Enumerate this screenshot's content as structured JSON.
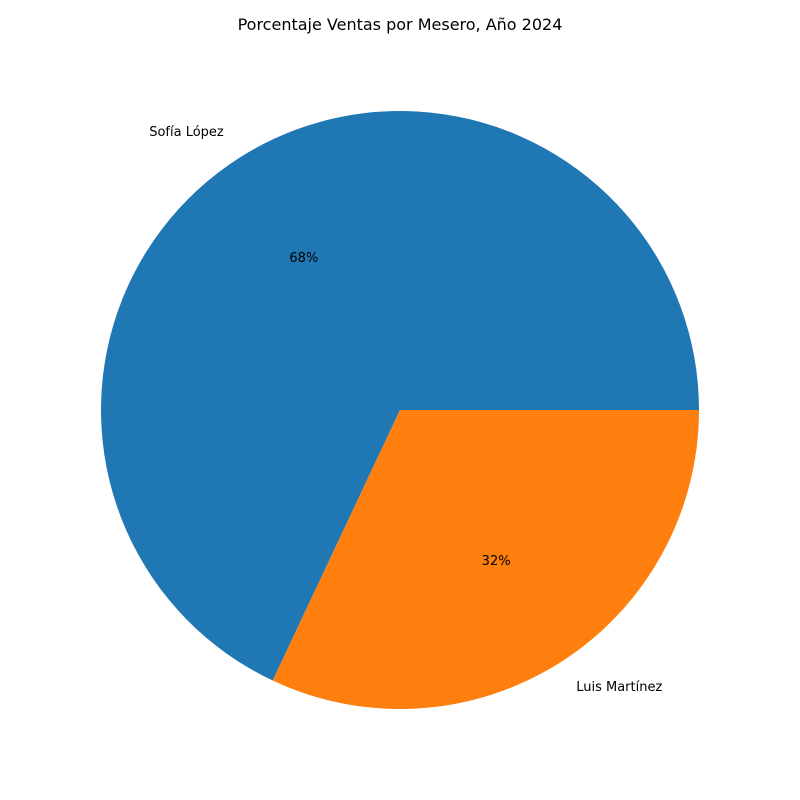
{
  "chart_data": {
    "type": "pie",
    "title": "Porcentaje Ventas por Mesero, Año 2024",
    "categories": [
      "Sofía López",
      "Luis Martínez"
    ],
    "values": [
      68,
      32
    ],
    "value_labels": [
      "68%",
      "32%"
    ],
    "colors": [
      "#1f77b4",
      "#ff7f0e"
    ],
    "start_angle_deg": 0,
    "direction": "counterclockwise",
    "legend": "none"
  }
}
